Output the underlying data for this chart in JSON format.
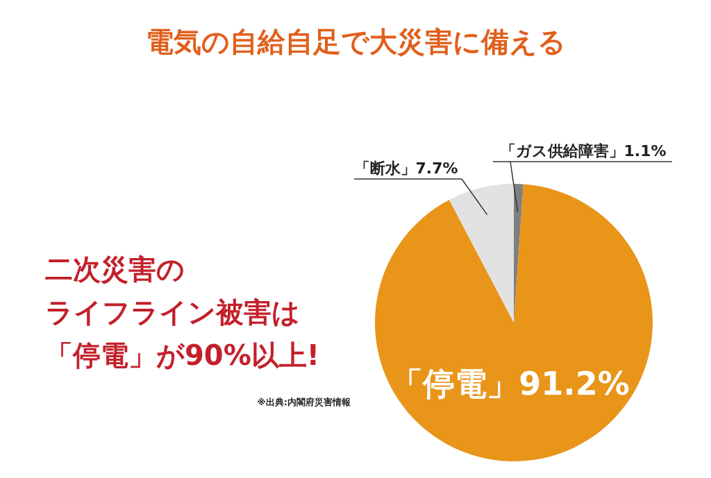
{
  "chart_data": {
    "type": "pie",
    "title": "電気の自給自足で大災害に備える",
    "categories": [
      "「ガス供給障害」",
      "「停電」",
      "「断水」"
    ],
    "values": [
      1.1,
      91.2,
      7.7
    ],
    "value_labels": [
      "1.1%",
      "91.2%",
      "7.7%"
    ],
    "colors": [
      "#808080",
      "#e8951a",
      "#e2e2e2"
    ],
    "annotations": [
      "二次災害の",
      "ライフライン被害は",
      "「停電」が90%以上!",
      "※出典:内閣府災害情報"
    ]
  }
}
